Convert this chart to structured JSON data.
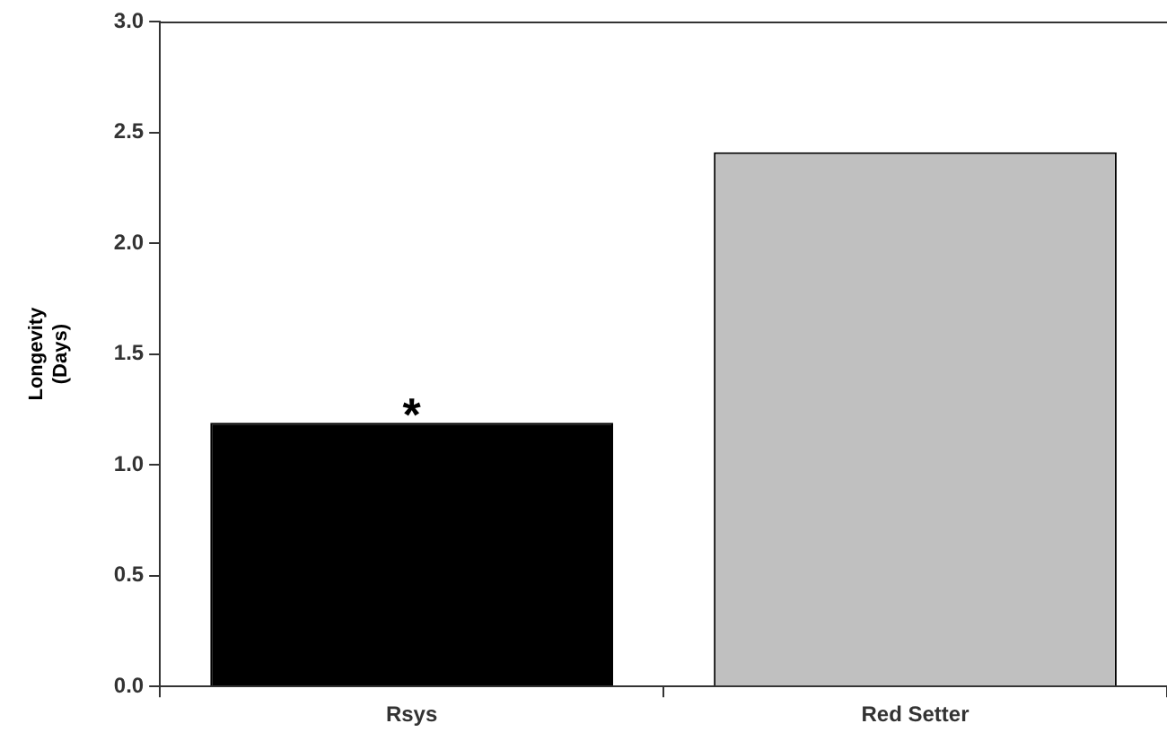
{
  "chart_data": {
    "type": "bar",
    "ylabel": "Longevity (Days)",
    "categories": [
      "Rsys",
      "Red Setter"
    ],
    "values": [
      1.19,
      2.41
    ],
    "colors": [
      "#000000",
      "#c0c0c0"
    ],
    "ylim": [
      0,
      3
    ],
    "yticks": [
      {
        "value": 0,
        "label": "0.0"
      },
      {
        "value": 0.5,
        "label": "0.5"
      },
      {
        "value": 1,
        "label": "1.0"
      },
      {
        "value": 1.5,
        "label": "1.5"
      },
      {
        "value": 2,
        "label": "2.0"
      },
      {
        "value": 2.5,
        "label": "2.5"
      },
      {
        "value": 3,
        "label": "3.0"
      }
    ],
    "grid": false,
    "legend": false,
    "annotations": [
      {
        "text": "*",
        "x": "Rsys",
        "y": 1.19
      }
    ]
  }
}
